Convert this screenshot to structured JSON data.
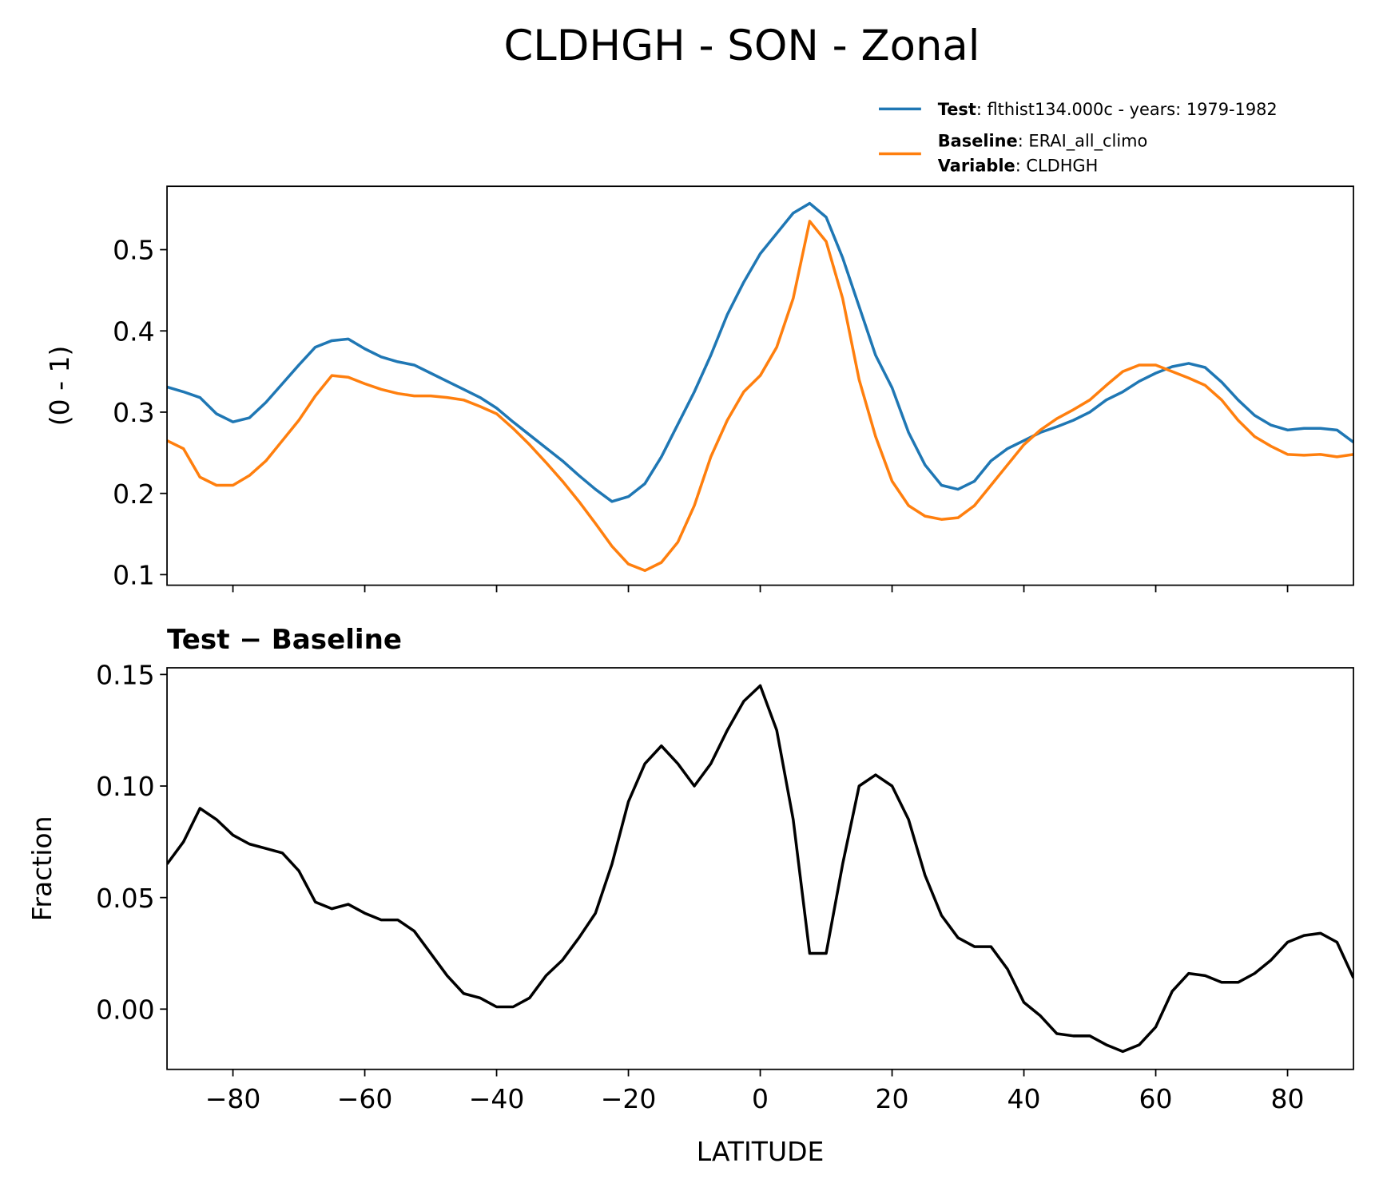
{
  "chart_data": [
    {
      "type": "line",
      "title": "CLDHGH - SON - Zonal",
      "ylabel": "(0 - 1)",
      "x": [
        -90,
        -87.5,
        -85,
        -82.5,
        -80,
        -77.5,
        -75,
        -72.5,
        -70,
        -67.5,
        -65,
        -62.5,
        -60,
        -57.5,
        -55,
        -52.5,
        -50,
        -47.5,
        -45,
        -42.5,
        -40,
        -37.5,
        -35,
        -32.5,
        -30,
        -27.5,
        -25,
        -22.5,
        -20,
        -17.5,
        -15,
        -12.5,
        -10,
        -7.5,
        -5,
        -2.5,
        0,
        2.5,
        5,
        7.5,
        10,
        12.5,
        15,
        17.5,
        20,
        22.5,
        25,
        27.5,
        30,
        32.5,
        35,
        37.5,
        40,
        42.5,
        45,
        47.5,
        50,
        52.5,
        55,
        57.5,
        60,
        62.5,
        65,
        67.5,
        70,
        72.5,
        75,
        77.5,
        80,
        82.5,
        85,
        87.5,
        90
      ],
      "series": [
        {
          "name": "Test",
          "description": ": flthist134.000c - years: 1979-1982",
          "color": "#1f77b4",
          "values": [
            0.331,
            0.325,
            0.318,
            0.298,
            0.288,
            0.293,
            0.312,
            0.335,
            0.358,
            0.38,
            0.388,
            0.39,
            0.378,
            0.368,
            0.362,
            0.358,
            0.348,
            0.338,
            0.328,
            0.318,
            0.305,
            0.288,
            0.272,
            0.256,
            0.24,
            0.222,
            0.205,
            0.19,
            0.196,
            0.212,
            0.245,
            0.285,
            0.325,
            0.37,
            0.42,
            0.46,
            0.495,
            0.52,
            0.545,
            0.557,
            0.54,
            0.49,
            0.43,
            0.37,
            0.33,
            0.275,
            0.235,
            0.21,
            0.205,
            0.215,
            0.24,
            0.255,
            0.265,
            0.275,
            0.282,
            0.29,
            0.3,
            0.315,
            0.325,
            0.338,
            0.348,
            0.356,
            0.36,
            0.355,
            0.337,
            0.315,
            0.296,
            0.284,
            0.278,
            0.28,
            0.28,
            0.278,
            0.263
          ]
        },
        {
          "name": "Baseline",
          "description": ": ERAI_all_climo",
          "variable_name": "Variable",
          "variable": ": CLDHGH",
          "color": "#ff7f0e",
          "values": [
            0.265,
            0.255,
            0.22,
            0.21,
            0.21,
            0.222,
            0.24,
            0.265,
            0.29,
            0.32,
            0.345,
            0.343,
            0.335,
            0.328,
            0.323,
            0.32,
            0.32,
            0.318,
            0.315,
            0.307,
            0.298,
            0.28,
            0.26,
            0.238,
            0.215,
            0.19,
            0.163,
            0.135,
            0.113,
            0.105,
            0.115,
            0.14,
            0.185,
            0.245,
            0.29,
            0.325,
            0.345,
            0.38,
            0.44,
            0.535,
            0.51,
            0.44,
            0.34,
            0.27,
            0.215,
            0.185,
            0.172,
            0.168,
            0.17,
            0.185,
            0.21,
            0.235,
            0.26,
            0.278,
            0.292,
            0.303,
            0.315,
            0.333,
            0.35,
            0.358,
            0.358,
            0.35,
            0.342,
            0.333,
            0.315,
            0.29,
            0.27,
            0.258,
            0.248,
            0.247,
            0.248,
            0.245,
            0.248
          ]
        }
      ],
      "xlim": [
        -90,
        90
      ],
      "xticks": [
        -80,
        -60,
        -40,
        -20,
        0,
        20,
        40,
        60,
        80
      ],
      "ylim": [
        0.087,
        0.578
      ],
      "yticks": [
        0.1,
        0.2,
        0.3,
        0.4,
        0.5
      ],
      "legend": "upper right"
    },
    {
      "type": "line",
      "title": "Test − Baseline",
      "xlabel": "LATITUDE",
      "ylabel": "Fraction",
      "x": [
        -90,
        -87.5,
        -85,
        -82.5,
        -80,
        -77.5,
        -75,
        -72.5,
        -70,
        -67.5,
        -65,
        -62.5,
        -60,
        -57.5,
        -55,
        -52.5,
        -50,
        -47.5,
        -45,
        -42.5,
        -40,
        -37.5,
        -35,
        -32.5,
        -30,
        -27.5,
        -25,
        -22.5,
        -20,
        -17.5,
        -15,
        -12.5,
        -10,
        -7.5,
        -5,
        -2.5,
        0,
        2.5,
        5,
        7.5,
        10,
        12.5,
        15,
        17.5,
        20,
        22.5,
        25,
        27.5,
        30,
        32.5,
        35,
        37.5,
        40,
        42.5,
        45,
        47.5,
        50,
        52.5,
        55,
        57.5,
        60,
        62.5,
        65,
        67.5,
        70,
        72.5,
        75,
        77.5,
        80,
        82.5,
        85,
        87.5,
        90
      ],
      "series": [
        {
          "color": "#000000",
          "values": [
            0.065,
            0.075,
            0.09,
            0.085,
            0.078,
            0.074,
            0.072,
            0.07,
            0.062,
            0.048,
            0.045,
            0.047,
            0.043,
            0.04,
            0.04,
            0.035,
            0.025,
            0.015,
            0.007,
            0.005,
            0.001,
            0.001,
            0.005,
            0.015,
            0.022,
            0.032,
            0.043,
            0.065,
            0.093,
            0.11,
            0.118,
            0.11,
            0.1,
            0.11,
            0.125,
            0.138,
            0.145,
            0.125,
            0.085,
            0.025,
            0.025,
            0.065,
            0.1,
            0.105,
            0.1,
            0.085,
            0.06,
            0.042,
            0.032,
            0.028,
            0.028,
            0.018,
            0.003,
            -0.003,
            -0.011,
            -0.012,
            -0.012,
            -0.016,
            -0.019,
            -0.016,
            -0.008,
            0.008,
            0.016,
            0.015,
            0.012,
            0.012,
            0.016,
            0.022,
            0.03,
            0.033,
            0.034,
            0.03,
            0.014
          ]
        }
      ],
      "xlim": [
        -90,
        90
      ],
      "xticks": [
        {
          "value": -80,
          "label": "−80"
        },
        {
          "value": -60,
          "label": "−60"
        },
        {
          "value": -40,
          "label": "−40"
        },
        {
          "value": -20,
          "label": "−20"
        },
        0,
        20,
        40,
        60,
        80
      ],
      "ylim": [
        -0.027,
        0.153
      ],
      "yticks": [
        {
          "value": 0,
          "label": "0.00"
        },
        {
          "value": 0.05,
          "label": "0.05"
        },
        {
          "value": 0.1,
          "label": "0.10"
        },
        {
          "value": 0.15,
          "label": "0.15"
        }
      ]
    }
  ]
}
